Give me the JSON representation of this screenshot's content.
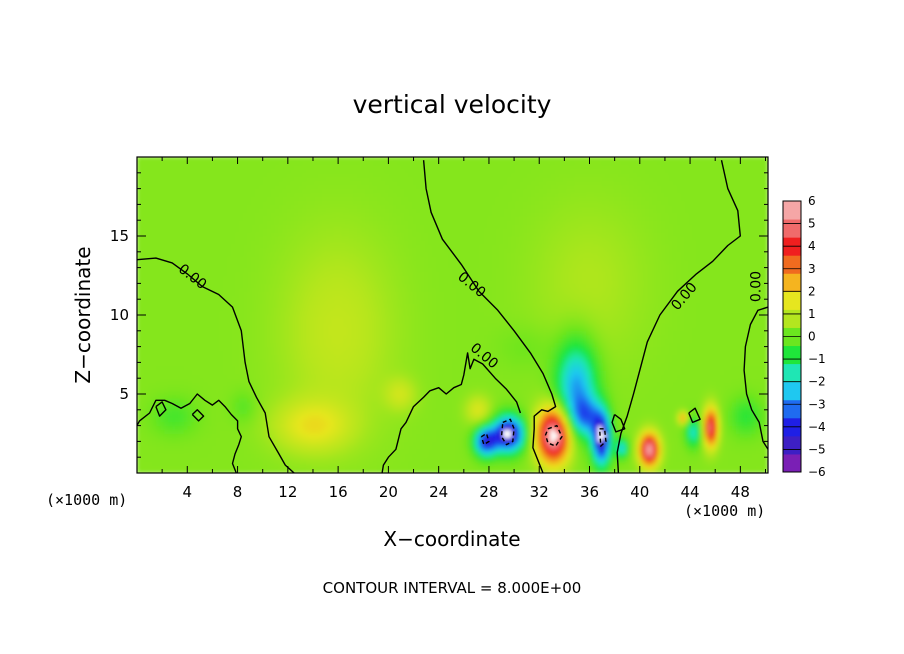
{
  "chart_data": {
    "type": "heatmap",
    "title": "vertical velocity",
    "xlabel": "X−coordinate",
    "ylabel": "Z−coordinate",
    "x_unit": "(×1000 m)",
    "x_unit_right": "(×1000 m)",
    "xlim": [
      0,
      50.2
    ],
    "ylim": [
      0,
      20
    ],
    "x_ticks": [
      4,
      8,
      12,
      16,
      20,
      24,
      28,
      32,
      36,
      40,
      44,
      48
    ],
    "y_ticks": [
      5,
      10,
      15
    ],
    "colorbar": {
      "range": [
        -6,
        6
      ],
      "tick_values": [
        6,
        5,
        4,
        3,
        2,
        1,
        0,
        -1,
        -2,
        -3,
        -4,
        -5,
        -6
      ],
      "tick_labels": [
        "6",
        "5",
        "4",
        "3",
        "2",
        "1",
        "0",
        "−1",
        "−2",
        "−3",
        "−4",
        "−5",
        "−6"
      ],
      "colors": [
        "#7a1fb5",
        "#3d1fc4",
        "#1f1fe6",
        "#1f6bf0",
        "#1fc8f0",
        "#1fe6b4",
        "#1fe63a",
        "#6be61f",
        "#b4e61f",
        "#e6e61f",
        "#f5b41f",
        "#f06b1f",
        "#f01f1f",
        "#f06b6b",
        "#f5a6a6"
      ]
    },
    "background_value": 0.3,
    "features": [
      {
        "kind": "updraft-broad",
        "x": 16,
        "z": 9,
        "sx": 4.5,
        "sz": 6,
        "value": 0.8
      },
      {
        "kind": "updraft-low",
        "x": 14,
        "z": 3,
        "sx": 3,
        "sz": 1.6,
        "value": 1.4
      },
      {
        "kind": "updraft-broad",
        "x": 36,
        "z": 12,
        "sx": 4.5,
        "sz": 5,
        "value": 0.5
      },
      {
        "kind": "downdraft",
        "x": 35,
        "z": 5.5,
        "sx": 1.6,
        "sz": 2.8,
        "value": -3.3
      },
      {
        "kind": "downdraft",
        "x": 35.8,
        "z": 3.6,
        "sx": 1.2,
        "sz": 1.2,
        "value": -2.5
      },
      {
        "kind": "downdraft",
        "x": 29.6,
        "z": 2.5,
        "sx": 1.2,
        "sz": 1.1,
        "value": -5.8
      },
      {
        "kind": "downdraft",
        "x": 27.8,
        "z": 2.0,
        "sx": 0.9,
        "sz": 0.9,
        "value": -4.5
      },
      {
        "kind": "downdraft",
        "x": 37.0,
        "z": 2.2,
        "sx": 0.7,
        "sz": 1.6,
        "value": -5.6
      },
      {
        "kind": "downdraft",
        "x": 38.6,
        "z": 1.6,
        "sx": 0.5,
        "sz": 0.6,
        "value": -2.5
      },
      {
        "kind": "downdraft",
        "x": 44.3,
        "z": 2.6,
        "sx": 0.6,
        "sz": 0.9,
        "value": -2.2
      },
      {
        "kind": "updraft",
        "x": 33.2,
        "z": 2.4,
        "sx": 1.3,
        "sz": 1.7,
        "value": 6.2
      },
      {
        "kind": "updraft",
        "x": 40.8,
        "z": 1.5,
        "sx": 0.75,
        "sz": 1.0,
        "value": 5.8
      },
      {
        "kind": "updraft",
        "x": 45.7,
        "z": 2.9,
        "sx": 0.55,
        "sz": 1.2,
        "value": 4.8
      },
      {
        "kind": "updraft",
        "x": 43.5,
        "z": 3.5,
        "sx": 0.4,
        "sz": 0.4,
        "value": 2.4
      },
      {
        "kind": "updraft",
        "x": 27.2,
        "z": 4.0,
        "sx": 1.0,
        "sz": 0.9,
        "value": 1.2
      },
      {
        "kind": "updraft",
        "x": 21.0,
        "z": 5.0,
        "sx": 1.2,
        "sz": 1.0,
        "value": 0.9
      },
      {
        "kind": "downdraft",
        "x": 3.0,
        "z": 3.6,
        "sx": 1.8,
        "sz": 1.2,
        "value": -0.7
      },
      {
        "kind": "downdraft",
        "x": 8.5,
        "z": 4.2,
        "sx": 1.0,
        "sz": 1.0,
        "value": -0.5
      },
      {
        "kind": "downdraft",
        "x": 48.5,
        "z": 3.6,
        "sx": 1.3,
        "sz": 1.2,
        "value": -1.0
      },
      {
        "kind": "downdraft",
        "x": 31.0,
        "z": 8.0,
        "sx": 2.2,
        "sz": 1.4,
        "value": -0.3
      }
    ],
    "contours": [
      {
        "label": "0.00",
        "dash": false,
        "points": [
          [
            0,
            13.5
          ],
          [
            1.5,
            13.6
          ],
          [
            2.8,
            13.3
          ],
          [
            4,
            12.6
          ],
          [
            5.2,
            11.8
          ],
          [
            6.5,
            11.3
          ],
          [
            7.6,
            10.5
          ],
          [
            8.3,
            9
          ],
          [
            8.6,
            7
          ],
          [
            8.9,
            5.8
          ],
          [
            9.5,
            4.8
          ],
          [
            10.2,
            3.8
          ],
          [
            10.5,
            2.3
          ],
          [
            11.3,
            1.2
          ],
          [
            11.8,
            0.5
          ],
          [
            12.5,
            0
          ]
        ]
      },
      {
        "label": "",
        "dash": false,
        "points": [
          [
            7.9,
            0
          ],
          [
            7.6,
            0.6
          ],
          [
            7.8,
            1.2
          ],
          [
            8.1,
            1.8
          ],
          [
            8.3,
            2.3
          ],
          [
            8.0,
            2.8
          ],
          [
            8.0,
            3.3
          ],
          [
            7.5,
            3.7
          ],
          [
            7.0,
            4.2
          ],
          [
            6.5,
            4.6
          ],
          [
            6.0,
            4.3
          ],
          [
            5.4,
            4.6
          ],
          [
            4.8,
            5.0
          ],
          [
            4.2,
            4.4
          ],
          [
            3.5,
            4.1
          ],
          [
            2.8,
            4.4
          ],
          [
            2.2,
            4.6
          ],
          [
            1.5,
            4.6
          ],
          [
            1.0,
            3.8
          ],
          [
            0.2,
            3.3
          ],
          [
            0,
            3.0
          ]
        ]
      },
      {
        "label": "",
        "dash": false,
        "points": [
          [
            1.5,
            4.2
          ],
          [
            2.0,
            4.5
          ],
          [
            2.3,
            4.0
          ],
          [
            1.8,
            3.6
          ],
          [
            1.5,
            4.2
          ]
        ]
      },
      {
        "label": "",
        "dash": false,
        "points": [
          [
            4.4,
            3.7
          ],
          [
            4.8,
            4.0
          ],
          [
            5.3,
            3.6
          ],
          [
            4.9,
            3.3
          ],
          [
            4.4,
            3.7
          ]
        ]
      },
      {
        "label": "0.00",
        "dash": false,
        "points": [
          [
            22.8,
            19.8
          ],
          [
            23.0,
            18
          ],
          [
            23.4,
            16.5
          ],
          [
            24.3,
            14.8
          ],
          [
            25.8,
            13.2
          ],
          [
            27.2,
            11.5
          ],
          [
            28.7,
            10.3
          ],
          [
            30.0,
            9.0
          ],
          [
            31.3,
            7.6
          ],
          [
            32.3,
            6.3
          ],
          [
            33.0,
            5.0
          ],
          [
            33.3,
            4.2
          ],
          [
            32.7,
            3.9
          ],
          [
            32.2,
            4.0
          ],
          [
            31.6,
            3.6
          ],
          [
            31.6,
            2.8
          ],
          [
            31.5,
            1.6
          ],
          [
            32.0,
            0.6
          ],
          [
            32.3,
            0
          ]
        ]
      },
      {
        "label": "0.00",
        "dash": false,
        "points": [
          [
            30.5,
            3.8
          ],
          [
            30.2,
            4.5
          ],
          [
            29.4,
            5.3
          ],
          [
            28.5,
            6.0
          ],
          [
            27.5,
            6.9
          ],
          [
            26.8,
            7.2
          ],
          [
            26.5,
            6.6
          ],
          [
            26.3,
            7.6
          ],
          [
            26.0,
            6.2
          ],
          [
            25.8,
            5.6
          ],
          [
            25.2,
            5.4
          ],
          [
            24.6,
            5.0
          ],
          [
            24.0,
            5.4
          ],
          [
            23.3,
            5.2
          ],
          [
            22.8,
            4.8
          ],
          [
            22.0,
            4.2
          ],
          [
            21.4,
            3.2
          ],
          [
            21.0,
            2.8
          ],
          [
            20.6,
            1.5
          ],
          [
            20.0,
            1.0
          ],
          [
            19.6,
            0.5
          ],
          [
            19.5,
            0
          ]
        ]
      },
      {
        "label": "0.00",
        "dash": false,
        "points": [
          [
            46.5,
            19.8
          ],
          [
            47.0,
            18
          ],
          [
            47.8,
            16.6
          ],
          [
            48.0,
            15
          ],
          [
            47.0,
            14.4
          ],
          [
            45.8,
            13.4
          ],
          [
            44.5,
            12.6
          ],
          [
            43.0,
            11.5
          ],
          [
            41.6,
            10.0
          ],
          [
            40.6,
            8.3
          ],
          [
            40.0,
            6.5
          ],
          [
            39.5,
            5.0
          ],
          [
            39.0,
            3.6
          ],
          [
            38.5,
            2.5
          ],
          [
            38.2,
            1.3
          ],
          [
            38.3,
            0
          ]
        ]
      },
      {
        "label": "",
        "dash": false,
        "points": [
          [
            38.0,
            3.7
          ],
          [
            38.5,
            3.4
          ],
          [
            38.8,
            2.8
          ],
          [
            38.1,
            2.6
          ],
          [
            37.8,
            3.2
          ],
          [
            38.0,
            3.7
          ]
        ]
      },
      {
        "label": "0.00",
        "dash": false,
        "points": [
          [
            50.2,
            10.5
          ],
          [
            49.4,
            10.3
          ],
          [
            48.8,
            9.4
          ],
          [
            48.4,
            8.0
          ],
          [
            48.3,
            6.5
          ],
          [
            48.5,
            5.0
          ],
          [
            48.9,
            4.0
          ],
          [
            49.5,
            3.2
          ],
          [
            49.8,
            2.0
          ],
          [
            50.2,
            1.5
          ]
        ]
      },
      {
        "label": "",
        "dash": true,
        "points": [
          [
            29.1,
            3.2
          ],
          [
            29.7,
            3.4
          ],
          [
            30.0,
            2.8
          ],
          [
            29.9,
            2.0
          ],
          [
            29.4,
            1.8
          ],
          [
            29.0,
            2.3
          ],
          [
            29.1,
            3.2
          ]
        ]
      },
      {
        "label": "",
        "dash": true,
        "points": [
          [
            32.7,
            2.8
          ],
          [
            33.4,
            3.0
          ],
          [
            33.8,
            2.3
          ],
          [
            33.3,
            1.7
          ],
          [
            32.7,
            1.9
          ],
          [
            32.5,
            2.4
          ],
          [
            32.7,
            2.8
          ]
        ]
      },
      {
        "label": "",
        "dash": true,
        "points": [
          [
            27.4,
            2.3
          ],
          [
            27.8,
            2.5
          ],
          [
            28.0,
            2.0
          ],
          [
            27.6,
            1.8
          ],
          [
            27.4,
            2.3
          ]
        ]
      },
      {
        "label": "",
        "dash": true,
        "points": [
          [
            36.8,
            2.8
          ],
          [
            37.2,
            2.8
          ],
          [
            37.3,
            2.0
          ],
          [
            36.9,
            1.7
          ],
          [
            36.8,
            2.8
          ]
        ]
      },
      {
        "label": "",
        "dash": false,
        "points": [
          [
            43.9,
            3.8
          ],
          [
            44.4,
            4.1
          ],
          [
            44.8,
            3.4
          ],
          [
            44.2,
            3.2
          ],
          [
            43.9,
            3.8
          ]
        ]
      }
    ],
    "contour_labels": [
      {
        "text": "0.00",
        "x": 4.2,
        "z": 12.2,
        "angle": 38
      },
      {
        "text": "0.00",
        "x": 26.4,
        "z": 11.7,
        "angle": 40
      },
      {
        "text": "0.00",
        "x": 27.4,
        "z": 7.2,
        "angle": 40
      },
      {
        "text": "0.00",
        "x": 43.8,
        "z": 11.0,
        "angle": -50
      },
      {
        "text": "0.00",
        "x": 49.6,
        "z": 11.8,
        "angle": -90
      }
    ],
    "contour_interval_text": "CONTOUR INTERVAL = 8.000E+00"
  }
}
